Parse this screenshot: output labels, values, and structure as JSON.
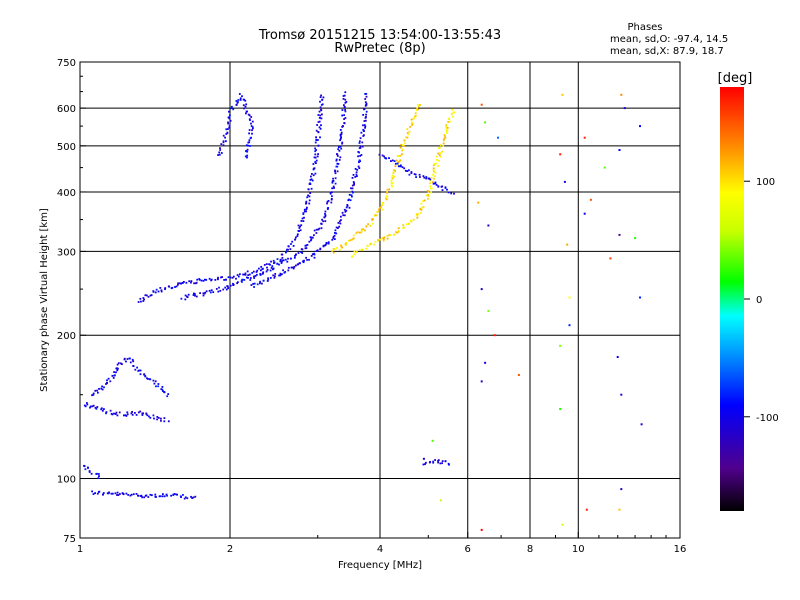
{
  "chart_data": {
    "type": "scatter",
    "title": "Tromsø 20151215 13:54:00-13:55:43",
    "subtitle": "RwPretec (8p)",
    "xlabel": "Frequency [MHz]",
    "ylabel": "Stationary phase Virtual Height [km]",
    "x_scale": "log",
    "y_scale": "log",
    "xlim": [
      1,
      16
    ],
    "ylim": [
      75,
      750
    ],
    "x_ticks": [
      1,
      2,
      4,
      6,
      8,
      10,
      16
    ],
    "x_tick_labels": [
      "1",
      "2",
      "4",
      "6",
      "8",
      "10",
      "16"
    ],
    "y_ticks": [
      75,
      100,
      200,
      300,
      400,
      500,
      600,
      750
    ],
    "y_tick_labels": [
      "75",
      "100",
      "200",
      "300",
      "400",
      "500",
      "600",
      "750"
    ],
    "x_gridlines": [
      2,
      4,
      6,
      8,
      10
    ],
    "y_gridlines": [
      100,
      200,
      300,
      400,
      500,
      600
    ],
    "phases_box": {
      "title": "Phases",
      "line_o": "mean, sd,O: -97.4, 14.5",
      "line_x": "mean, sd,X:  87.9, 18.7"
    },
    "colorbar": {
      "label": "[deg]",
      "range": [
        -180,
        180
      ],
      "ticks": [
        100,
        0,
        -100
      ],
      "tick_labels": [
        "100",
        "0",
        "-100"
      ]
    },
    "echo_traces": [
      {
        "name": "",
        "phase": -100,
        "points": [
          [
            1.05,
            94
          ],
          [
            1.1,
            93.5
          ],
          [
            1.2,
            93
          ],
          [
            1.35,
            92.5
          ],
          [
            1.5,
            92.5
          ],
          [
            1.62,
            92
          ],
          [
            1.7,
            91
          ]
        ]
      },
      {
        "name": "",
        "phase": -100,
        "points": [
          [
            1.0,
            108
          ],
          [
            1.05,
            104
          ],
          [
            1.1,
            101
          ]
        ]
      },
      {
        "name": "",
        "phase": -100,
        "points": [
          [
            1.0,
            145
          ],
          [
            1.1,
            140
          ],
          [
            1.2,
            137
          ],
          [
            1.3,
            138
          ],
          [
            1.4,
            135
          ],
          [
            1.5,
            133
          ]
        ]
      },
      {
        "name": "",
        "phase": -100,
        "points": [
          [
            1.05,
            150
          ],
          [
            1.15,
            162
          ],
          [
            1.2,
            175
          ],
          [
            1.25,
            180
          ],
          [
            1.3,
            170
          ],
          [
            1.4,
            160
          ],
          [
            1.5,
            150
          ]
        ]
      },
      {
        "name": "",
        "phase": -100,
        "points": [
          [
            1.3,
            236
          ],
          [
            1.4,
            248
          ],
          [
            1.6,
            258
          ],
          [
            1.8,
            263
          ],
          [
            2.0,
            264
          ],
          [
            2.3,
            276
          ],
          [
            2.5,
            290
          ],
          [
            2.7,
            320
          ],
          [
            2.85,
            380
          ],
          [
            2.95,
            460
          ],
          [
            3.0,
            540
          ],
          [
            3.05,
            650
          ]
        ]
      },
      {
        "name": "",
        "phase": -100,
        "points": [
          [
            1.6,
            240
          ],
          [
            1.8,
            247
          ],
          [
            2.0,
            255
          ],
          [
            2.2,
            265
          ],
          [
            2.5,
            283
          ],
          [
            2.8,
            303
          ],
          [
            3.1,
            355
          ],
          [
            3.25,
            440
          ],
          [
            3.35,
            540
          ],
          [
            3.4,
            650
          ]
        ]
      },
      {
        "name": "",
        "phase": -100,
        "points": [
          [
            2.2,
            255
          ],
          [
            2.5,
            270
          ],
          [
            2.9,
            293
          ],
          [
            3.2,
            320
          ],
          [
            3.45,
            380
          ],
          [
            3.6,
            460
          ],
          [
            3.7,
            560
          ],
          [
            3.75,
            650
          ]
        ]
      },
      {
        "name": "",
        "phase": -100,
        "points": [
          [
            1.9,
            480
          ],
          [
            1.95,
            530
          ],
          [
            2.0,
            590
          ],
          [
            2.1,
            640
          ],
          [
            2.2,
            560
          ],
          [
            2.15,
            470
          ]
        ]
      },
      {
        "name": "",
        "phase": 100,
        "points": [
          [
            3.2,
            300
          ],
          [
            3.5,
            320
          ],
          [
            3.8,
            345
          ],
          [
            4.0,
            370
          ],
          [
            4.2,
            420
          ],
          [
            4.4,
            490
          ],
          [
            4.6,
            560
          ],
          [
            4.8,
            620
          ]
        ]
      },
      {
        "name": "",
        "phase": 100,
        "points": [
          [
            3.5,
            295
          ],
          [
            3.9,
            315
          ],
          [
            4.3,
            330
          ],
          [
            4.7,
            355
          ],
          [
            5.0,
            400
          ],
          [
            5.2,
            470
          ],
          [
            5.4,
            540
          ],
          [
            5.6,
            600
          ]
        ]
      },
      {
        "name": "",
        "phase": -100,
        "points": [
          [
            4.0,
            480
          ],
          [
            4.3,
            460
          ],
          [
            4.6,
            440
          ],
          [
            5.0,
            425
          ],
          [
            5.3,
            410
          ],
          [
            5.6,
            400
          ]
        ]
      },
      {
        "name": "",
        "phase": -100,
        "points": [
          [
            4.9,
            108
          ],
          [
            5.1,
            109
          ],
          [
            5.3,
            109
          ],
          [
            5.5,
            108
          ]
        ]
      }
    ],
    "scatter_points": [
      {
        "x": 6.4,
        "y": 610,
        "phase": 150
      },
      {
        "x": 6.5,
        "y": 560,
        "phase": 30
      },
      {
        "x": 6.9,
        "y": 520,
        "phase": -60
      },
      {
        "x": 6.3,
        "y": 380,
        "phase": 120
      },
      {
        "x": 6.6,
        "y": 340,
        "phase": -110
      },
      {
        "x": 6.4,
        "y": 250,
        "phase": -120
      },
      {
        "x": 6.6,
        "y": 225,
        "phase": 40
      },
      {
        "x": 6.8,
        "y": 200,
        "phase": 170
      },
      {
        "x": 6.5,
        "y": 175,
        "phase": -100
      },
      {
        "x": 6.4,
        "y": 160,
        "phase": -120
      },
      {
        "x": 7.6,
        "y": 165,
        "phase": 150
      },
      {
        "x": 6.4,
        "y": 78,
        "phase": 180
      },
      {
        "x": 9.3,
        "y": 640,
        "phase": 110
      },
      {
        "x": 9.2,
        "y": 480,
        "phase": 170
      },
      {
        "x": 9.4,
        "y": 420,
        "phase": -100
      },
      {
        "x": 9.5,
        "y": 310,
        "phase": 120
      },
      {
        "x": 9.6,
        "y": 240,
        "phase": 90
      },
      {
        "x": 9.6,
        "y": 210,
        "phase": -80
      },
      {
        "x": 9.2,
        "y": 190,
        "phase": 40
      },
      {
        "x": 9.2,
        "y": 140,
        "phase": 20
      },
      {
        "x": 9.3,
        "y": 80,
        "phase": 60
      },
      {
        "x": 10.3,
        "y": 520,
        "phase": 170
      },
      {
        "x": 10.6,
        "y": 385,
        "phase": 150
      },
      {
        "x": 10.3,
        "y": 360,
        "phase": -100
      },
      {
        "x": 11.3,
        "y": 450,
        "phase": 30
      },
      {
        "x": 11.6,
        "y": 290,
        "phase": 160
      },
      {
        "x": 10.4,
        "y": 86,
        "phase": 170
      },
      {
        "x": 12.2,
        "y": 640,
        "phase": 130
      },
      {
        "x": 12.4,
        "y": 600,
        "phase": -110
      },
      {
        "x": 12.1,
        "y": 490,
        "phase": -90
      },
      {
        "x": 12.1,
        "y": 325,
        "phase": -140
      },
      {
        "x": 12.0,
        "y": 180,
        "phase": -100
      },
      {
        "x": 12.2,
        "y": 150,
        "phase": -110
      },
      {
        "x": 12.2,
        "y": 95,
        "phase": -120
      },
      {
        "x": 12.1,
        "y": 86,
        "phase": 110
      },
      {
        "x": 13.0,
        "y": 320,
        "phase": 20
      },
      {
        "x": 13.3,
        "y": 550,
        "phase": -90
      },
      {
        "x": 13.3,
        "y": 240,
        "phase": -80
      },
      {
        "x": 13.4,
        "y": 130,
        "phase": -110
      },
      {
        "x": 5.1,
        "y": 120,
        "phase": 30
      },
      {
        "x": 5.3,
        "y": 90,
        "phase": 60
      },
      {
        "x": 4.9,
        "y": 110,
        "phase": -110
      }
    ]
  }
}
